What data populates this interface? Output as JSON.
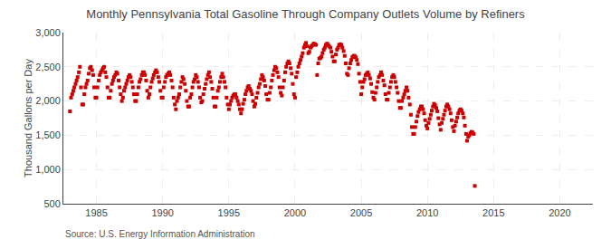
{
  "chart_data": {
    "type": "scatter",
    "title": "Monthly Pennsylvania Total Gasoline Through Company Outlets Volume by Refiners",
    "ylabel": "Thousand Gallons per Day",
    "annotations": [
      "Source: U.S. Energy Information Administration"
    ],
    "color": "#cc0000",
    "marker": "square",
    "grid": true,
    "xlim": [
      1982.5,
      2022.5
    ],
    "xticks": [
      1985,
      1990,
      1995,
      2000,
      2005,
      2010,
      2015,
      2020
    ],
    "ylim": [
      500,
      3000
    ],
    "yticks": [
      500,
      {
        "value": 1000,
        "label": "1,000"
      },
      {
        "value": 1500,
        "label": "1,500"
      },
      {
        "value": 2000,
        "label": "2,000"
      },
      {
        "value": 2500,
        "label": "2,500"
      },
      {
        "value": 3000,
        "label": "3,000"
      }
    ],
    "x": [
      1983.0,
      1983.08,
      1983.17,
      1983.25,
      1983.33,
      1983.42,
      1983.5,
      1983.58,
      1983.67,
      1983.75,
      1983.83,
      1983.92,
      1984.0,
      1984.08,
      1984.17,
      1984.25,
      1984.33,
      1984.42,
      1984.5,
      1984.58,
      1984.67,
      1984.75,
      1984.83,
      1984.92,
      1985.0,
      1985.08,
      1985.17,
      1985.25,
      1985.33,
      1985.42,
      1985.5,
      1985.58,
      1985.67,
      1985.75,
      1985.83,
      1985.92,
      1986.0,
      1986.08,
      1986.17,
      1986.25,
      1986.33,
      1986.42,
      1986.5,
      1986.58,
      1986.67,
      1986.75,
      1986.83,
      1986.92,
      1987.0,
      1987.08,
      1987.17,
      1987.25,
      1987.33,
      1987.42,
      1987.5,
      1987.58,
      1987.67,
      1987.75,
      1987.83,
      1987.92,
      1988.0,
      1988.08,
      1988.17,
      1988.25,
      1988.33,
      1988.42,
      1988.5,
      1988.58,
      1988.67,
      1988.75,
      1988.83,
      1988.92,
      1989.0,
      1989.08,
      1989.17,
      1989.25,
      1989.33,
      1989.42,
      1989.5,
      1989.58,
      1989.67,
      1989.75,
      1989.83,
      1989.92,
      1990.0,
      1990.08,
      1990.17,
      1990.25,
      1990.33,
      1990.42,
      1990.5,
      1990.58,
      1990.67,
      1990.75,
      1990.83,
      1990.92,
      1991.0,
      1991.08,
      1991.17,
      1991.25,
      1991.33,
      1991.42,
      1991.5,
      1991.58,
      1991.67,
      1991.75,
      1991.83,
      1991.92,
      1992.0,
      1992.08,
      1992.17,
      1992.25,
      1992.33,
      1992.42,
      1992.5,
      1992.58,
      1992.67,
      1992.75,
      1992.83,
      1992.92,
      1993.0,
      1993.08,
      1993.17,
      1993.25,
      1993.33,
      1993.42,
      1993.5,
      1993.58,
      1993.67,
      1993.75,
      1993.83,
      1993.92,
      1994.0,
      1994.08,
      1994.17,
      1994.25,
      1994.33,
      1994.42,
      1994.5,
      1994.58,
      1994.67,
      1994.75,
      1994.83,
      1994.92,
      1995.0,
      1995.08,
      1995.17,
      1995.25,
      1995.33,
      1995.42,
      1995.5,
      1995.58,
      1995.67,
      1995.75,
      1995.83,
      1995.92,
      1996.0,
      1996.08,
      1996.17,
      1996.25,
      1996.33,
      1996.42,
      1996.5,
      1996.58,
      1996.67,
      1996.75,
      1996.83,
      1996.92,
      1997.0,
      1997.08,
      1997.17,
      1997.25,
      1997.33,
      1997.42,
      1997.5,
      1997.58,
      1997.67,
      1997.75,
      1997.83,
      1997.92,
      1998.0,
      1998.08,
      1998.17,
      1998.25,
      1998.33,
      1998.42,
      1998.5,
      1998.58,
      1998.67,
      1998.75,
      1998.83,
      1998.92,
      1999.0,
      1999.08,
      1999.17,
      1999.25,
      1999.33,
      1999.42,
      1999.5,
      1999.58,
      1999.67,
      1999.75,
      1999.83,
      1999.92,
      2000.0,
      2000.08,
      2000.17,
      2000.25,
      2000.33,
      2000.42,
      2000.5,
      2000.58,
      2000.67,
      2000.75,
      2000.83,
      2000.92,
      2001.0,
      2001.08,
      2001.17,
      2001.25,
      2001.33,
      2001.42,
      2001.5,
      2001.58,
      2001.67,
      2001.75,
      2001.83,
      2001.92,
      2002.0,
      2002.08,
      2002.17,
      2002.25,
      2002.33,
      2002.42,
      2002.5,
      2002.58,
      2002.67,
      2002.75,
      2002.83,
      2002.92,
      2003.0,
      2003.08,
      2003.17,
      2003.25,
      2003.33,
      2003.42,
      2003.5,
      2003.58,
      2003.67,
      2003.75,
      2003.83,
      2003.92,
      2004.0,
      2004.08,
      2004.17,
      2004.25,
      2004.33,
      2004.42,
      2004.5,
      2004.58,
      2004.67,
      2004.75,
      2004.83,
      2004.92,
      2005.0,
      2005.08,
      2005.17,
      2005.25,
      2005.33,
      2005.42,
      2005.5,
      2005.58,
      2005.67,
      2005.75,
      2005.83,
      2005.92,
      2006.0,
      2006.08,
      2006.17,
      2006.25,
      2006.33,
      2006.42,
      2006.5,
      2006.58,
      2006.67,
      2006.75,
      2006.83,
      2006.92,
      2007.0,
      2007.08,
      2007.17,
      2007.25,
      2007.33,
      2007.42,
      2007.5,
      2007.58,
      2007.67,
      2007.75,
      2007.83,
      2007.92,
      2008.0,
      2008.08,
      2008.17,
      2008.25,
      2008.33,
      2008.42,
      2008.5,
      2008.58,
      2008.67,
      2008.75,
      2008.83,
      2008.92,
      2009.0,
      2009.08,
      2009.17,
      2009.25,
      2009.33,
      2009.42,
      2009.5,
      2009.58,
      2009.67,
      2009.75,
      2009.83,
      2009.92,
      2010.0,
      2010.08,
      2010.17,
      2010.25,
      2010.33,
      2010.42,
      2010.5,
      2010.58,
      2010.67,
      2010.75,
      2010.83,
      2010.92,
      2011.0,
      2011.08,
      2011.17,
      2011.25,
      2011.33,
      2011.42,
      2011.5,
      2011.58,
      2011.67,
      2011.75,
      2011.83,
      2011.92,
      2012.0,
      2012.08,
      2012.17,
      2012.25,
      2012.33,
      2012.42,
      2012.5,
      2012.58,
      2012.67,
      2012.75,
      2012.83,
      2012.92,
      2013.0,
      2013.08,
      2013.17,
      2013.25,
      2013.33,
      2013.42,
      2013.5,
      2013.58
    ],
    "values": [
      1850,
      2050,
      2100,
      2150,
      2200,
      2250,
      2300,
      2350,
      2420,
      2500,
      2200,
      1950,
      1950,
      2100,
      2200,
      2250,
      2300,
      2400,
      2480,
      2500,
      2450,
      2380,
      2200,
      2050,
      2050,
      2200,
      2300,
      2380,
      2420,
      2450,
      2480,
      2500,
      2420,
      2350,
      2200,
      2050,
      2050,
      2150,
      2250,
      2300,
      2350,
      2380,
      2420,
      2400,
      2300,
      2200,
      2100,
      2000,
      2050,
      2150,
      2200,
      2250,
      2300,
      2350,
      2380,
      2350,
      2280,
      2200,
      2100,
      2000,
      2000,
      2100,
      2200,
      2280,
      2320,
      2380,
      2420,
      2420,
      2380,
      2300,
      2150,
      2050,
      2100,
      2200,
      2280,
      2330,
      2380,
      2420,
      2450,
      2420,
      2350,
      2280,
      2150,
      2050,
      2050,
      2200,
      2280,
      2350,
      2380,
      2400,
      2420,
      2380,
      2300,
      2200,
      2050,
      1950,
      1880,
      2000,
      2050,
      2100,
      2200,
      2280,
      2350,
      2320,
      2250,
      2150,
      2000,
      1920,
      1920,
      2050,
      2100,
      2200,
      2280,
      2320,
      2380,
      2350,
      2280,
      2200,
      2050,
      1980,
      2000,
      2100,
      2180,
      2250,
      2320,
      2380,
      2420,
      2350,
      2280,
      2180,
      2050,
      1920,
      1920,
      2050,
      2150,
      2200,
      2280,
      2350,
      2400,
      2350,
      2280,
      2200,
      2050,
      1950,
      1880,
      1950,
      2000,
      2050,
      2080,
      2100,
      2100,
      2050,
      2000,
      1950,
      1880,
      1820,
      1880,
      1960,
      2020,
      2100,
      2150,
      2200,
      2220,
      2180,
      2150,
      2100,
      2000,
      1920,
      1960,
      2050,
      2120,
      2200,
      2250,
      2320,
      2380,
      2350,
      2300,
      2220,
      2100,
      2020,
      2020,
      2120,
      2200,
      2300,
      2380,
      2450,
      2500,
      2480,
      2420,
      2350,
      2200,
      2120,
      2080,
      2200,
      2300,
      2420,
      2500,
      2550,
      2580,
      2550,
      2480,
      2400,
      2250,
      2100,
      2050,
      2350,
      2420,
      2500,
      2550,
      2600,
      2650,
      2700,
      2780,
      2820,
      2850,
      2800,
      2700,
      2720,
      2780,
      2800,
      2820,
      2840,
      2830,
      2820,
      2380,
      2550,
      2620,
      2630,
      2650,
      2700,
      2750,
      2780,
      2820,
      2840,
      2820,
      2800,
      2780,
      2720,
      2650,
      2580,
      2580,
      2680,
      2750,
      2780,
      2820,
      2830,
      2820,
      2780,
      2730,
      2660,
      2550,
      2400,
      2380,
      2480,
      2550,
      2600,
      2640,
      2660,
      2660,
      2640,
      2600,
      2540,
      2400,
      2280,
      2100,
      2200,
      2280,
      2320,
      2380,
      2400,
      2420,
      2380,
      2330,
      2250,
      2130,
      2050,
      2020,
      2120,
      2200,
      2280,
      2350,
      2380,
      2420,
      2380,
      2300,
      2230,
      2100,
      2020,
      2020,
      2120,
      2200,
      2280,
      2350,
      2380,
      2350,
      2280,
      2200,
      2120,
      2000,
      1900,
      1900,
      2000,
      2050,
      2100,
      2150,
      2200,
      2150,
      2050,
      1950,
      1800,
      1620,
      1520,
      1520,
      1620,
      1700,
      1780,
      1840,
      1880,
      1920,
      1920,
      1880,
      1820,
      1720,
      1640,
      1600,
      1680,
      1740,
      1800,
      1860,
      1920,
      1960,
      1940,
      1900,
      1850,
      1750,
      1660,
      1580,
      1680,
      1740,
      1800,
      1860,
      1920,
      1950,
      1920,
      1880,
      1820,
      1720,
      1620,
      1560,
      1640,
      1700,
      1760,
      1820,
      1860,
      1880,
      1860,
      1820,
      1760,
      1640,
      1520,
      1420,
      1480,
      1500,
      1530,
      1550,
      1540,
      1520,
      760
    ]
  }
}
